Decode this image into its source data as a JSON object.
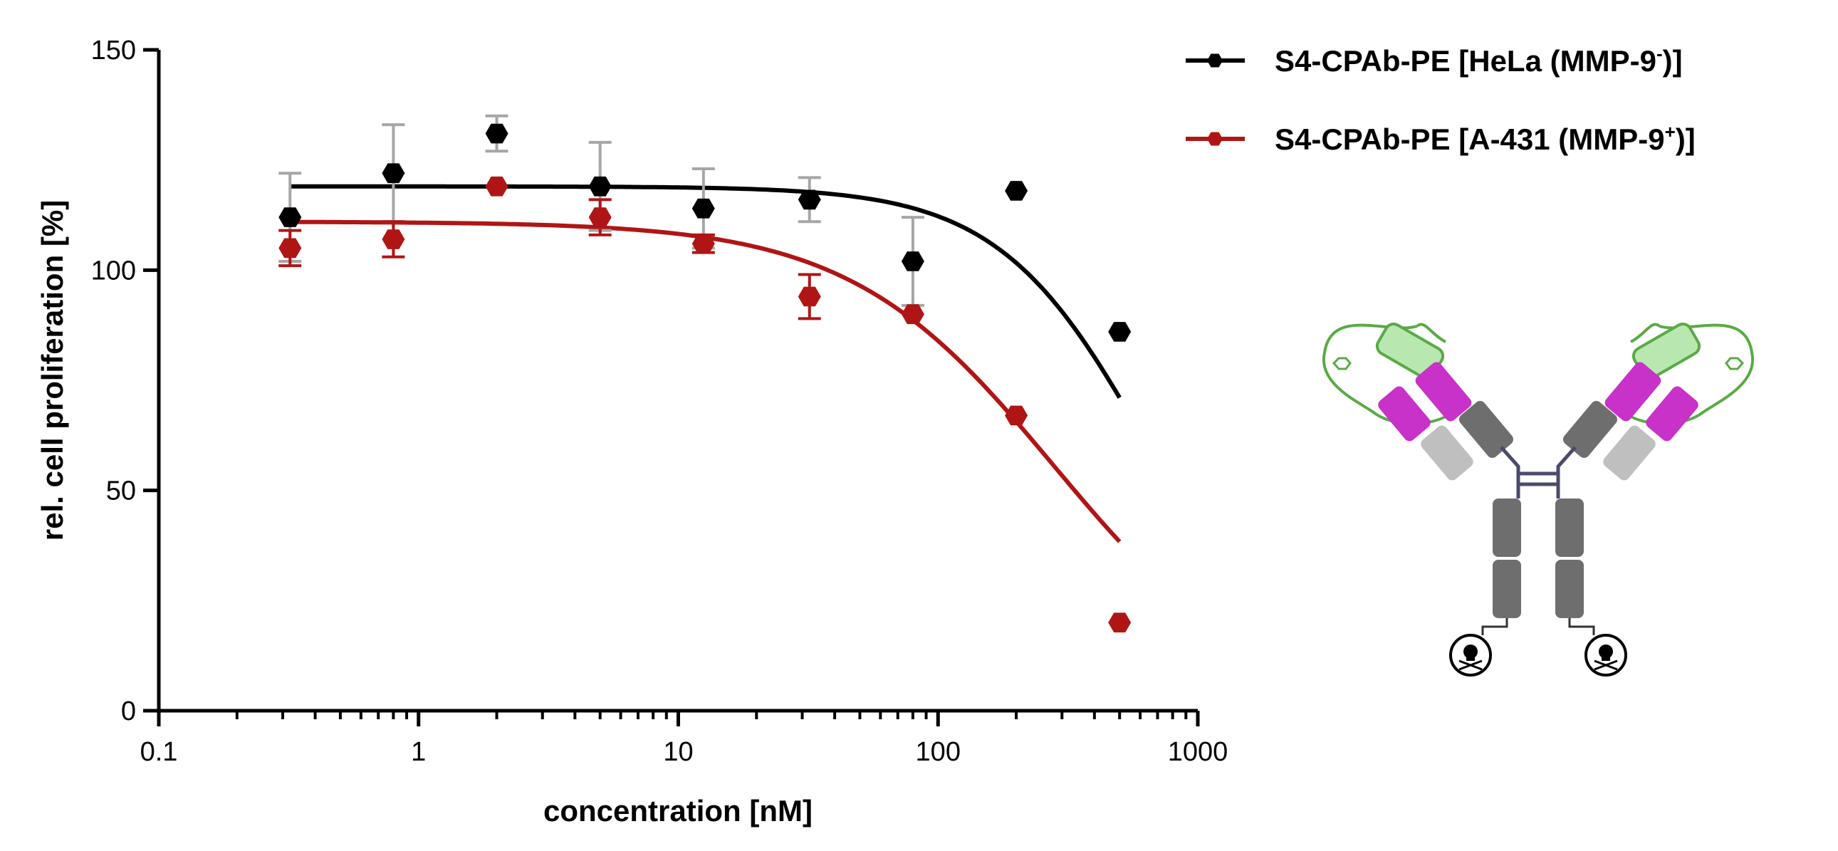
{
  "chart_data": {
    "type": "scatter",
    "xscale": "log",
    "xlim": [
      0.1,
      1000
    ],
    "ylim": [
      0,
      150
    ],
    "xlabel": "concentration [nM]",
    "ylabel": "rel. cell proliferation [%]",
    "xticks": [
      {
        "value": 0.1,
        "label": "0.1"
      },
      {
        "value": 1,
        "label": "1"
      },
      {
        "value": 10,
        "label": "10"
      },
      {
        "value": 100,
        "label": "100"
      },
      {
        "value": 1000,
        "label": "1000"
      }
    ],
    "yticks": [
      {
        "value": 0,
        "label": "0"
      },
      {
        "value": 50,
        "label": "50"
      },
      {
        "value": 100,
        "label": "100"
      },
      {
        "value": 150,
        "label": "150"
      }
    ],
    "series": [
      {
        "name": "S4-CPAb-PE [HeLa   (MMP-9-)]",
        "legend_main": "S4-CPAb-PE [HeLa   (MMP-9",
        "legend_sup": "-",
        "legend_tail": ")]",
        "color": "#000000",
        "errorbar_color": "#a6a6a6",
        "x": [
          0.32,
          0.8,
          2.0,
          5.0,
          12.5,
          32,
          80,
          200,
          500
        ],
        "y": [
          112,
          122,
          131,
          119,
          114,
          116,
          102,
          118,
          86
        ],
        "err": [
          10,
          11,
          4,
          10,
          9,
          5,
          10,
          0,
          0
        ],
        "fit": {
          "top": 119,
          "ic50": 650,
          "hill": 1.5
        }
      },
      {
        "name": "S4-CPAb-PE [A-431 (MMP-9+)]",
        "legend_main": "S4-CPAb-PE [A-431 (MMP-9",
        "legend_sup": "+",
        "legend_tail": ")]",
        "color": "#b01515",
        "errorbar_color": "#b01515",
        "x": [
          0.32,
          0.8,
          2.0,
          5.0,
          12.5,
          32,
          80,
          200,
          500
        ],
        "y": [
          105,
          107,
          119,
          112,
          106,
          94,
          90,
          67,
          20
        ],
        "err": [
          4,
          4,
          0,
          4,
          2,
          5,
          0,
          0,
          0
        ],
        "fit": {
          "top": 111,
          "ic50": 280,
          "hill": 1.1
        }
      }
    ]
  },
  "illustration": {
    "name": "antibody-drug-conjugate",
    "colors": {
      "heavy_chain": "#6e6e6e",
      "light_chain": "#bfbfbf",
      "variable_domain": "#c832c8",
      "mask_domain": "#b8e8b0",
      "linker": "#5aaa46",
      "hinge": "#4a4a6e"
    }
  }
}
